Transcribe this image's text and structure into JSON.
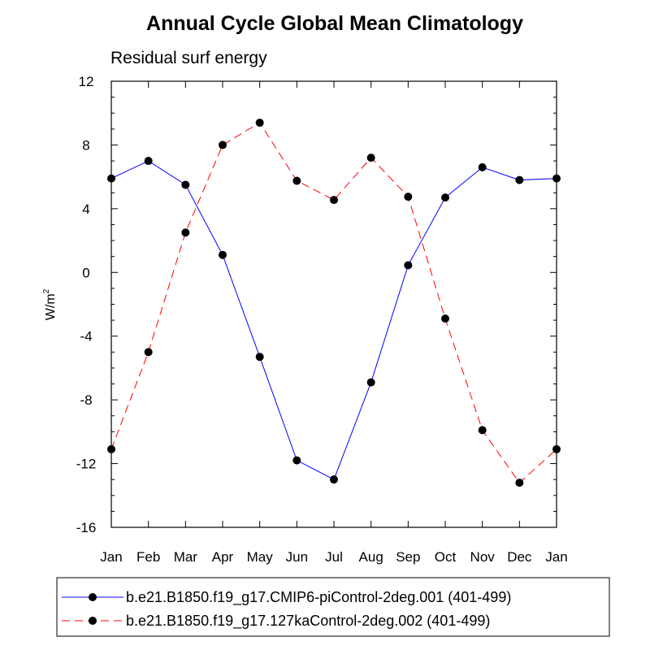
{
  "chart_data": {
    "type": "line",
    "title": "Annual Cycle Global Mean Climatology",
    "subtitle": "Residual surf energy",
    "ylabel": "W/m",
    "ylabel_sup": "2",
    "xlabel": "",
    "categories": [
      "Jan",
      "Feb",
      "Mar",
      "Apr",
      "May",
      "Jun",
      "Jul",
      "Aug",
      "Sep",
      "Oct",
      "Nov",
      "Dec",
      "Jan"
    ],
    "ylim": [
      -16,
      12
    ],
    "yticks": [
      12,
      8,
      4,
      0,
      -4,
      -8,
      -12,
      -16
    ],
    "grid": false,
    "legend_position": "bottom",
    "series": [
      {
        "name": "b.e21.B1850.f19_g17.CMIP6-piControl-2deg.001 (401-499)",
        "color": "#0000ff",
        "dash": "solid",
        "values": [
          5.9,
          7.0,
          5.5,
          1.1,
          -5.3,
          -11.8,
          -13.0,
          -6.9,
          0.45,
          4.7,
          6.6,
          5.8,
          5.9
        ]
      },
      {
        "name": "b.e21.B1850.f19_g17.127kaControl-2deg.002 (401-499)",
        "color": "#ff0000",
        "dash": "dashed",
        "values": [
          -11.1,
          -5.0,
          2.5,
          8.0,
          9.4,
          5.75,
          4.55,
          7.2,
          4.75,
          -2.9,
          -9.9,
          -13.2,
          -11.1
        ]
      }
    ]
  }
}
